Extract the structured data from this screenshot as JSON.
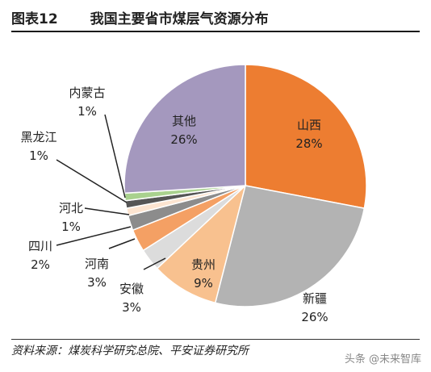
{
  "header": {
    "figure_number": "图表12",
    "title": "我国主要省市煤层气资源分布"
  },
  "chart_data": {
    "type": "pie",
    "title": "我国主要省市煤层气资源分布",
    "slices": [
      {
        "name": "山西",
        "value": 28,
        "label": "28%",
        "color": "#ED7D31"
      },
      {
        "name": "新疆",
        "value": 26,
        "label": "26%",
        "color": "#B3B3B3"
      },
      {
        "name": "贵州",
        "value": 9,
        "label": "9%",
        "color": "#F8C18F"
      },
      {
        "name": "安徽",
        "value": 3,
        "label": "3%",
        "color": "#DCDCDC"
      },
      {
        "name": "河南",
        "value": 3,
        "label": "3%",
        "color": "#F4A064"
      },
      {
        "name": "四川",
        "value": 2,
        "label": "2%",
        "color": "#8C8C8C"
      },
      {
        "name": "河北",
        "value": 1,
        "label": "1%",
        "color": "#FCE4D0"
      },
      {
        "name": "黑龙江",
        "value": 1,
        "label": "1%",
        "color": "#555555"
      },
      {
        "name": "内蒙古",
        "value": 1,
        "label": "1%",
        "color": "#A9D18E"
      },
      {
        "name": "其他",
        "value": 26,
        "label": "26%",
        "color": "#A498BE"
      }
    ]
  },
  "footer": {
    "source": "资料来源：煤炭科学研究总院、平安证券研究所",
    "watermark": "头条 @未来智库"
  }
}
